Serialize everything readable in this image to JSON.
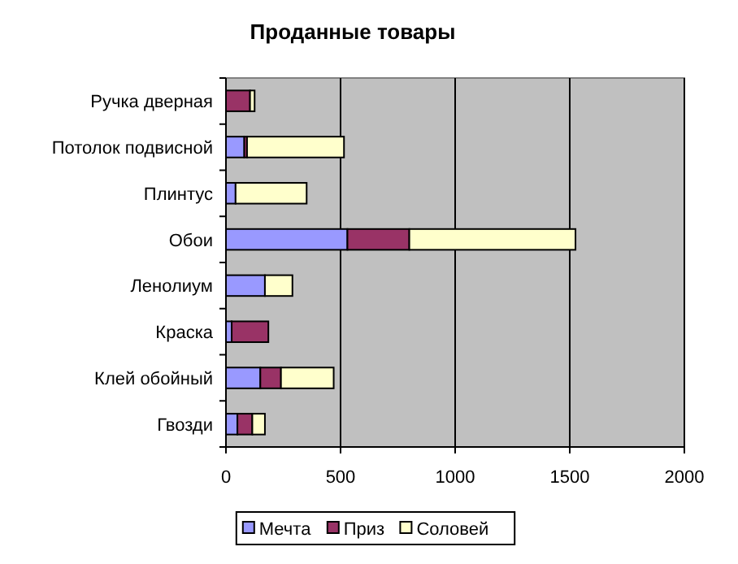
{
  "chart_data": {
    "type": "bar",
    "orientation": "horizontal",
    "stacked": true,
    "title": "Проданные товары",
    "categories": [
      "Ручка дверная",
      "Потолок подвисной",
      "Плинтус",
      "Обои",
      "Ленолиум",
      "Краска",
      "Клей обойный",
      "Гвозди"
    ],
    "series": [
      {
        "name": "Мечта",
        "color": "#9999ff",
        "values": [
          0,
          80,
          42,
          530,
          170,
          25,
          150,
          50
        ]
      },
      {
        "name": "Приз",
        "color": "#993366",
        "values": [
          105,
          12,
          0,
          270,
          0,
          160,
          90,
          65
        ]
      },
      {
        "name": "Соловей",
        "color": "#ffffcc",
        "values": [
          20,
          423,
          310,
          725,
          120,
          0,
          230,
          55
        ]
      }
    ],
    "xlim": [
      0,
      2000
    ],
    "xticks": [
      0,
      500,
      1000,
      1500,
      2000
    ],
    "grid": "x",
    "legend": "bottom"
  }
}
